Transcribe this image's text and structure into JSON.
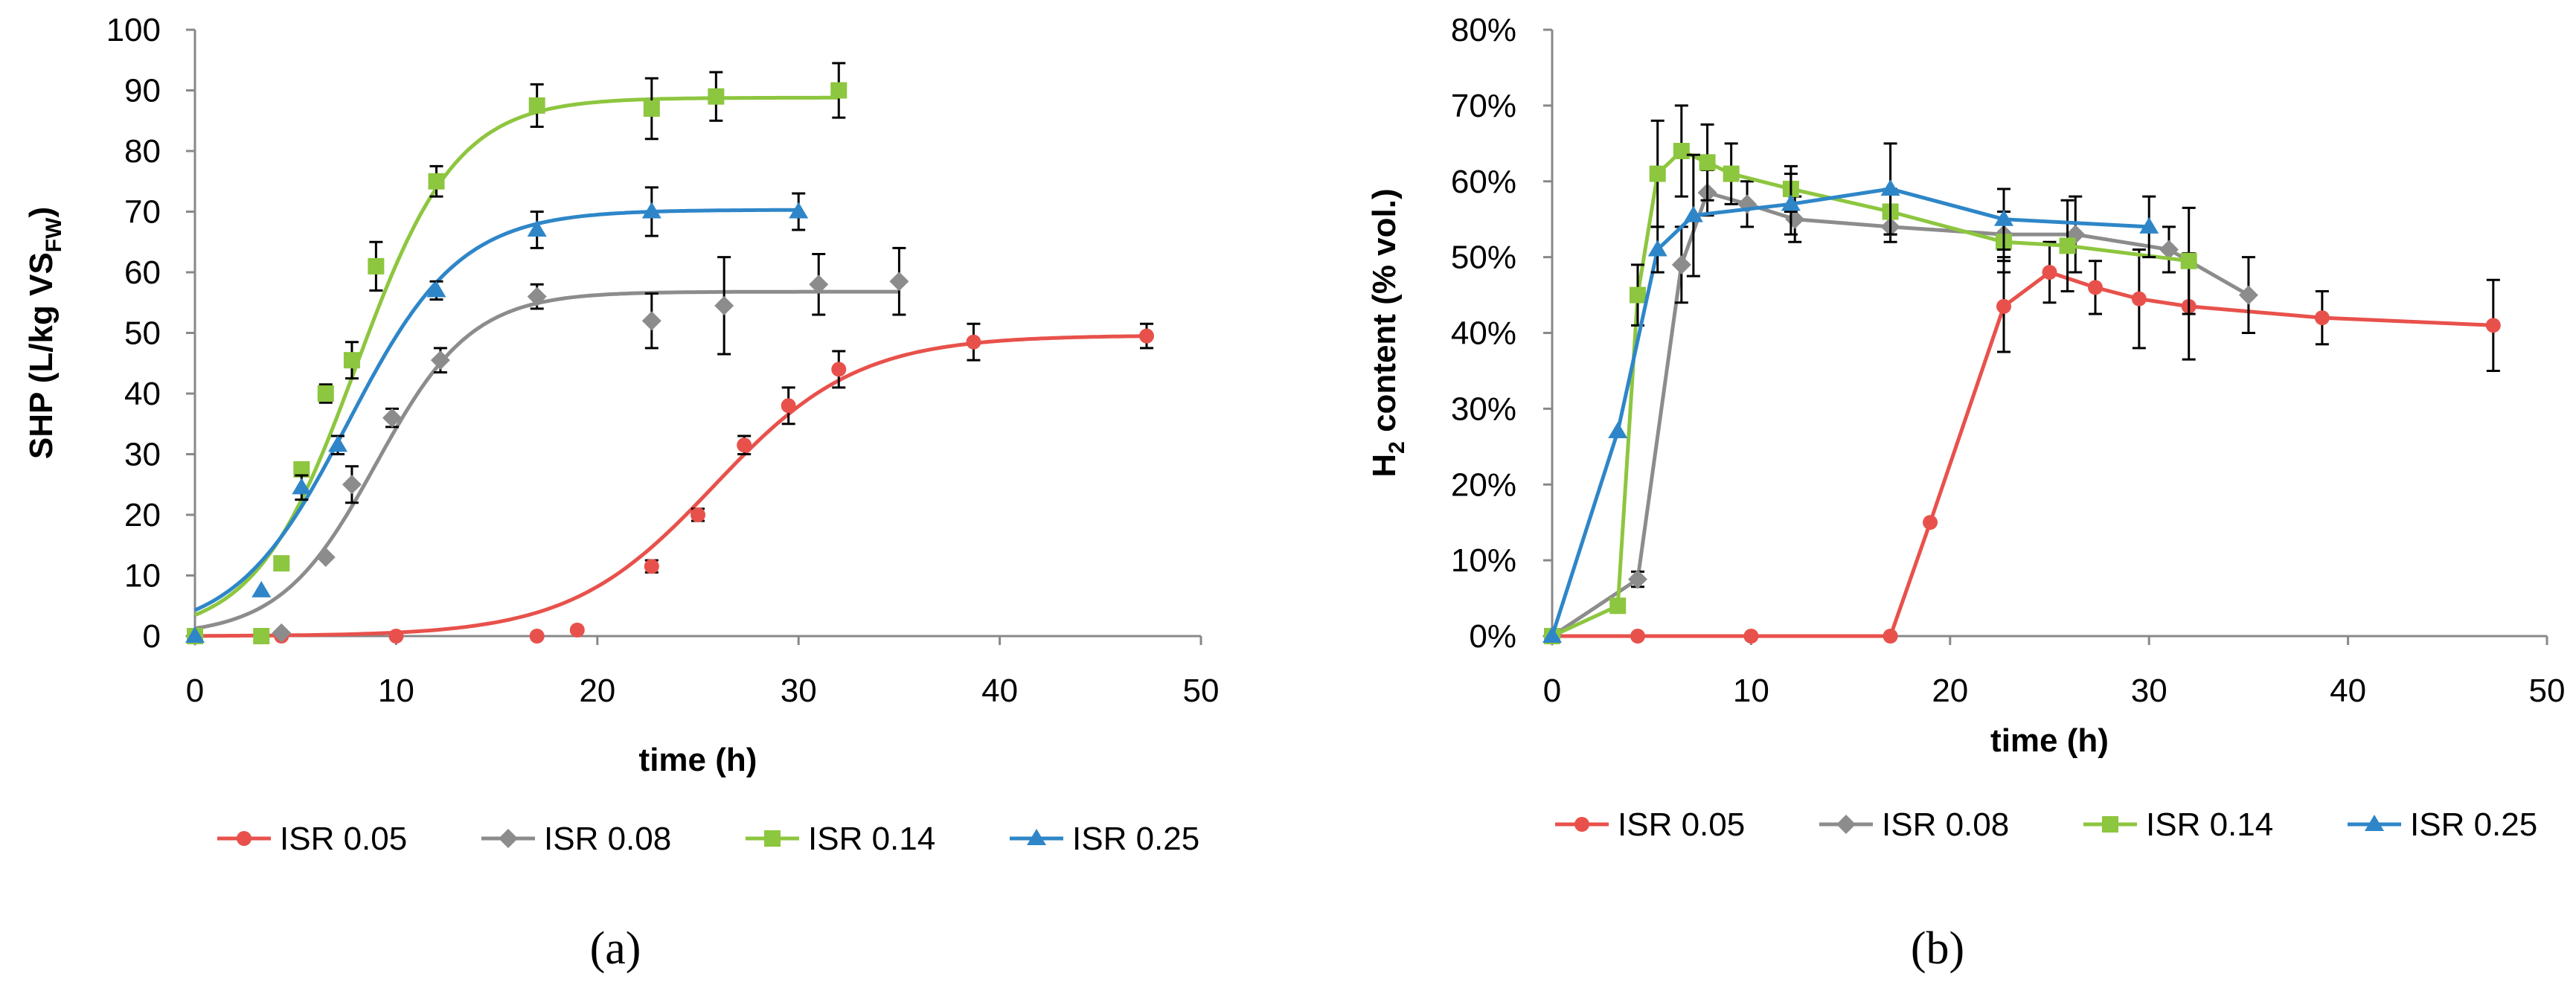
{
  "chart_data": [
    {
      "type": "line",
      "panel": "(a)",
      "caption": "(a)",
      "xlabel": "time (h)",
      "ylabel_parts": [
        "SHP (L/kg VS",
        "FW",
        ")"
      ],
      "xlim": [
        0,
        50
      ],
      "ylim": [
        0,
        100
      ],
      "xticks": [
        0,
        10,
        20,
        30,
        40,
        50
      ],
      "yticks": [
        0,
        10,
        20,
        30,
        40,
        50,
        60,
        70,
        80,
        90,
        100
      ],
      "yformat": "number",
      "fitted_curves": true,
      "legend_position": "bottom",
      "series": [
        {
          "name": "ISR 0.05",
          "color": "#E8514B",
          "marker": "circle",
          "points": [
            [
              0,
              0
            ],
            [
              4.3,
              0
            ],
            [
              10,
              0
            ],
            [
              17,
              0
            ],
            [
              19,
              1
            ],
            [
              22.7,
              11.5
            ],
            [
              25,
              20
            ],
            [
              27.3,
              31.5
            ],
            [
              29.5,
              38
            ],
            [
              32,
              44
            ],
            [
              38.7,
              48.5
            ],
            [
              47.3,
              49.5
            ]
          ],
          "errors": [
            0,
            0,
            0,
            0,
            0,
            1,
            1,
            1.5,
            3,
            3,
            3,
            2
          ],
          "curve": {
            "max": 49.6,
            "mid": 25.8,
            "k": 0.28
          }
        },
        {
          "name": "ISR 0.08",
          "color": "#8C8C8C",
          "marker": "diamond",
          "points": [
            [
              0,
              0
            ],
            [
              4.3,
              0.5
            ],
            [
              6.5,
              13
            ],
            [
              7.8,
              25
            ],
            [
              9.8,
              36
            ],
            [
              12.2,
              45.5
            ],
            [
              17,
              56
            ],
            [
              22.7,
              52
            ],
            [
              26.3,
              54.5
            ],
            [
              31,
              58
            ],
            [
              35,
              58.5
            ]
          ],
          "errors": [
            0,
            0,
            0,
            3,
            1.5,
            2,
            2,
            4.5,
            8,
            5,
            5.5
          ],
          "curve": {
            "max": 56.8,
            "mid": 9.0,
            "k": 0.42
          }
        },
        {
          "name": "ISR 0.14",
          "color": "#8DC63F",
          "marker": "square",
          "points": [
            [
              0,
              0
            ],
            [
              3.3,
              0
            ],
            [
              4.3,
              12
            ],
            [
              5.3,
              27.5
            ],
            [
              6.5,
              40
            ],
            [
              7.8,
              45.5
            ],
            [
              9,
              61
            ],
            [
              12,
              75
            ],
            [
              17,
              87.5
            ],
            [
              22.7,
              87
            ],
            [
              25.9,
              89
            ],
            [
              32,
              90
            ]
          ],
          "errors": [
            0,
            0,
            0,
            0,
            1.5,
            3,
            4,
            2.5,
            3.5,
            5,
            4,
            4.5
          ],
          "curve": {
            "max": 88.8,
            "mid": 8.0,
            "k": 0.4
          }
        },
        {
          "name": "ISR 0.25",
          "color": "#2E86C8",
          "marker": "triangle",
          "points": [
            [
              0,
              0
            ],
            [
              3.3,
              7.5
            ],
            [
              5.3,
              24.5
            ],
            [
              7.1,
              31.5
            ],
            [
              12,
              57
            ],
            [
              17,
              67
            ],
            [
              22.7,
              70
            ],
            [
              30,
              70
            ]
          ],
          "errors": [
            0,
            0,
            2,
            1.5,
            1.5,
            3,
            4,
            3
          ],
          "curve": {
            "max": 70.3,
            "mid": 7.6,
            "k": 0.36
          }
        }
      ]
    },
    {
      "type": "line",
      "panel": "(b)",
      "caption": "(b)",
      "xlabel": "time (h)",
      "ylabel_parts": [
        "H",
        "2",
        " content (% vol.)"
      ],
      "xlim": [
        0,
        50
      ],
      "ylim": [
        0,
        80
      ],
      "xticks": [
        0,
        10,
        20,
        30,
        40,
        50
      ],
      "yticks": [
        0,
        10,
        20,
        30,
        40,
        50,
        60,
        70,
        80
      ],
      "yformat": "percent",
      "fitted_curves": false,
      "legend_position": "bottom",
      "series": [
        {
          "name": "ISR 0.05",
          "color": "#E8514B",
          "marker": "circle",
          "points": [
            [
              0,
              0
            ],
            [
              4.3,
              0
            ],
            [
              10,
              0
            ],
            [
              17,
              0
            ],
            [
              19,
              15
            ],
            [
              22.7,
              43.5
            ],
            [
              25,
              48
            ],
            [
              27.3,
              46
            ],
            [
              29.5,
              44.5
            ],
            [
              32,
              43.5
            ],
            [
              38.7,
              42
            ],
            [
              47.3,
              41
            ]
          ],
          "errors": [
            0,
            0,
            0,
            0,
            0,
            6,
            4,
            3.5,
            6.5,
            7,
            3.5,
            6
          ]
        },
        {
          "name": "ISR 0.08",
          "color": "#8C8C8C",
          "marker": "diamond",
          "points": [
            [
              0,
              0
            ],
            [
              4.3,
              7.5
            ],
            [
              6.5,
              49
            ],
            [
              7.8,
              58.5
            ],
            [
              9.8,
              57
            ],
            [
              12.2,
              55
            ],
            [
              17,
              54
            ],
            [
              22.7,
              53
            ],
            [
              26.3,
              53
            ],
            [
              31,
              51
            ],
            [
              35,
              45
            ]
          ],
          "errors": [
            0,
            1,
            5,
            3,
            3,
            3,
            2,
            3,
            5,
            3,
            5
          ]
        },
        {
          "name": "ISR 0.14",
          "color": "#8DC63F",
          "marker": "square",
          "points": [
            [
              0,
              0
            ],
            [
              3.3,
              4
            ],
            [
              4.3,
              45
            ],
            [
              5.3,
              61
            ],
            [
              6.5,
              64
            ],
            [
              7.8,
              62.5
            ],
            [
              9,
              61
            ],
            [
              12,
              59
            ],
            [
              17,
              56
            ],
            [
              22.7,
              52
            ],
            [
              25.9,
              51.5
            ],
            [
              32,
              49.5
            ]
          ],
          "errors": [
            0,
            0,
            4,
            7,
            6,
            5,
            4,
            3,
            3,
            4,
            6,
            7
          ]
        },
        {
          "name": "ISR 0.25",
          "color": "#2E86C8",
          "marker": "triangle",
          "points": [
            [
              0,
              0
            ],
            [
              3.3,
              27
            ],
            [
              5.3,
              51
            ],
            [
              7.1,
              55.5
            ],
            [
              12,
              57
            ],
            [
              17,
              59
            ],
            [
              22.7,
              55
            ],
            [
              30,
              54
            ]
          ],
          "errors": [
            0,
            0,
            3,
            8,
            4,
            6,
            4,
            4
          ]
        }
      ]
    }
  ]
}
